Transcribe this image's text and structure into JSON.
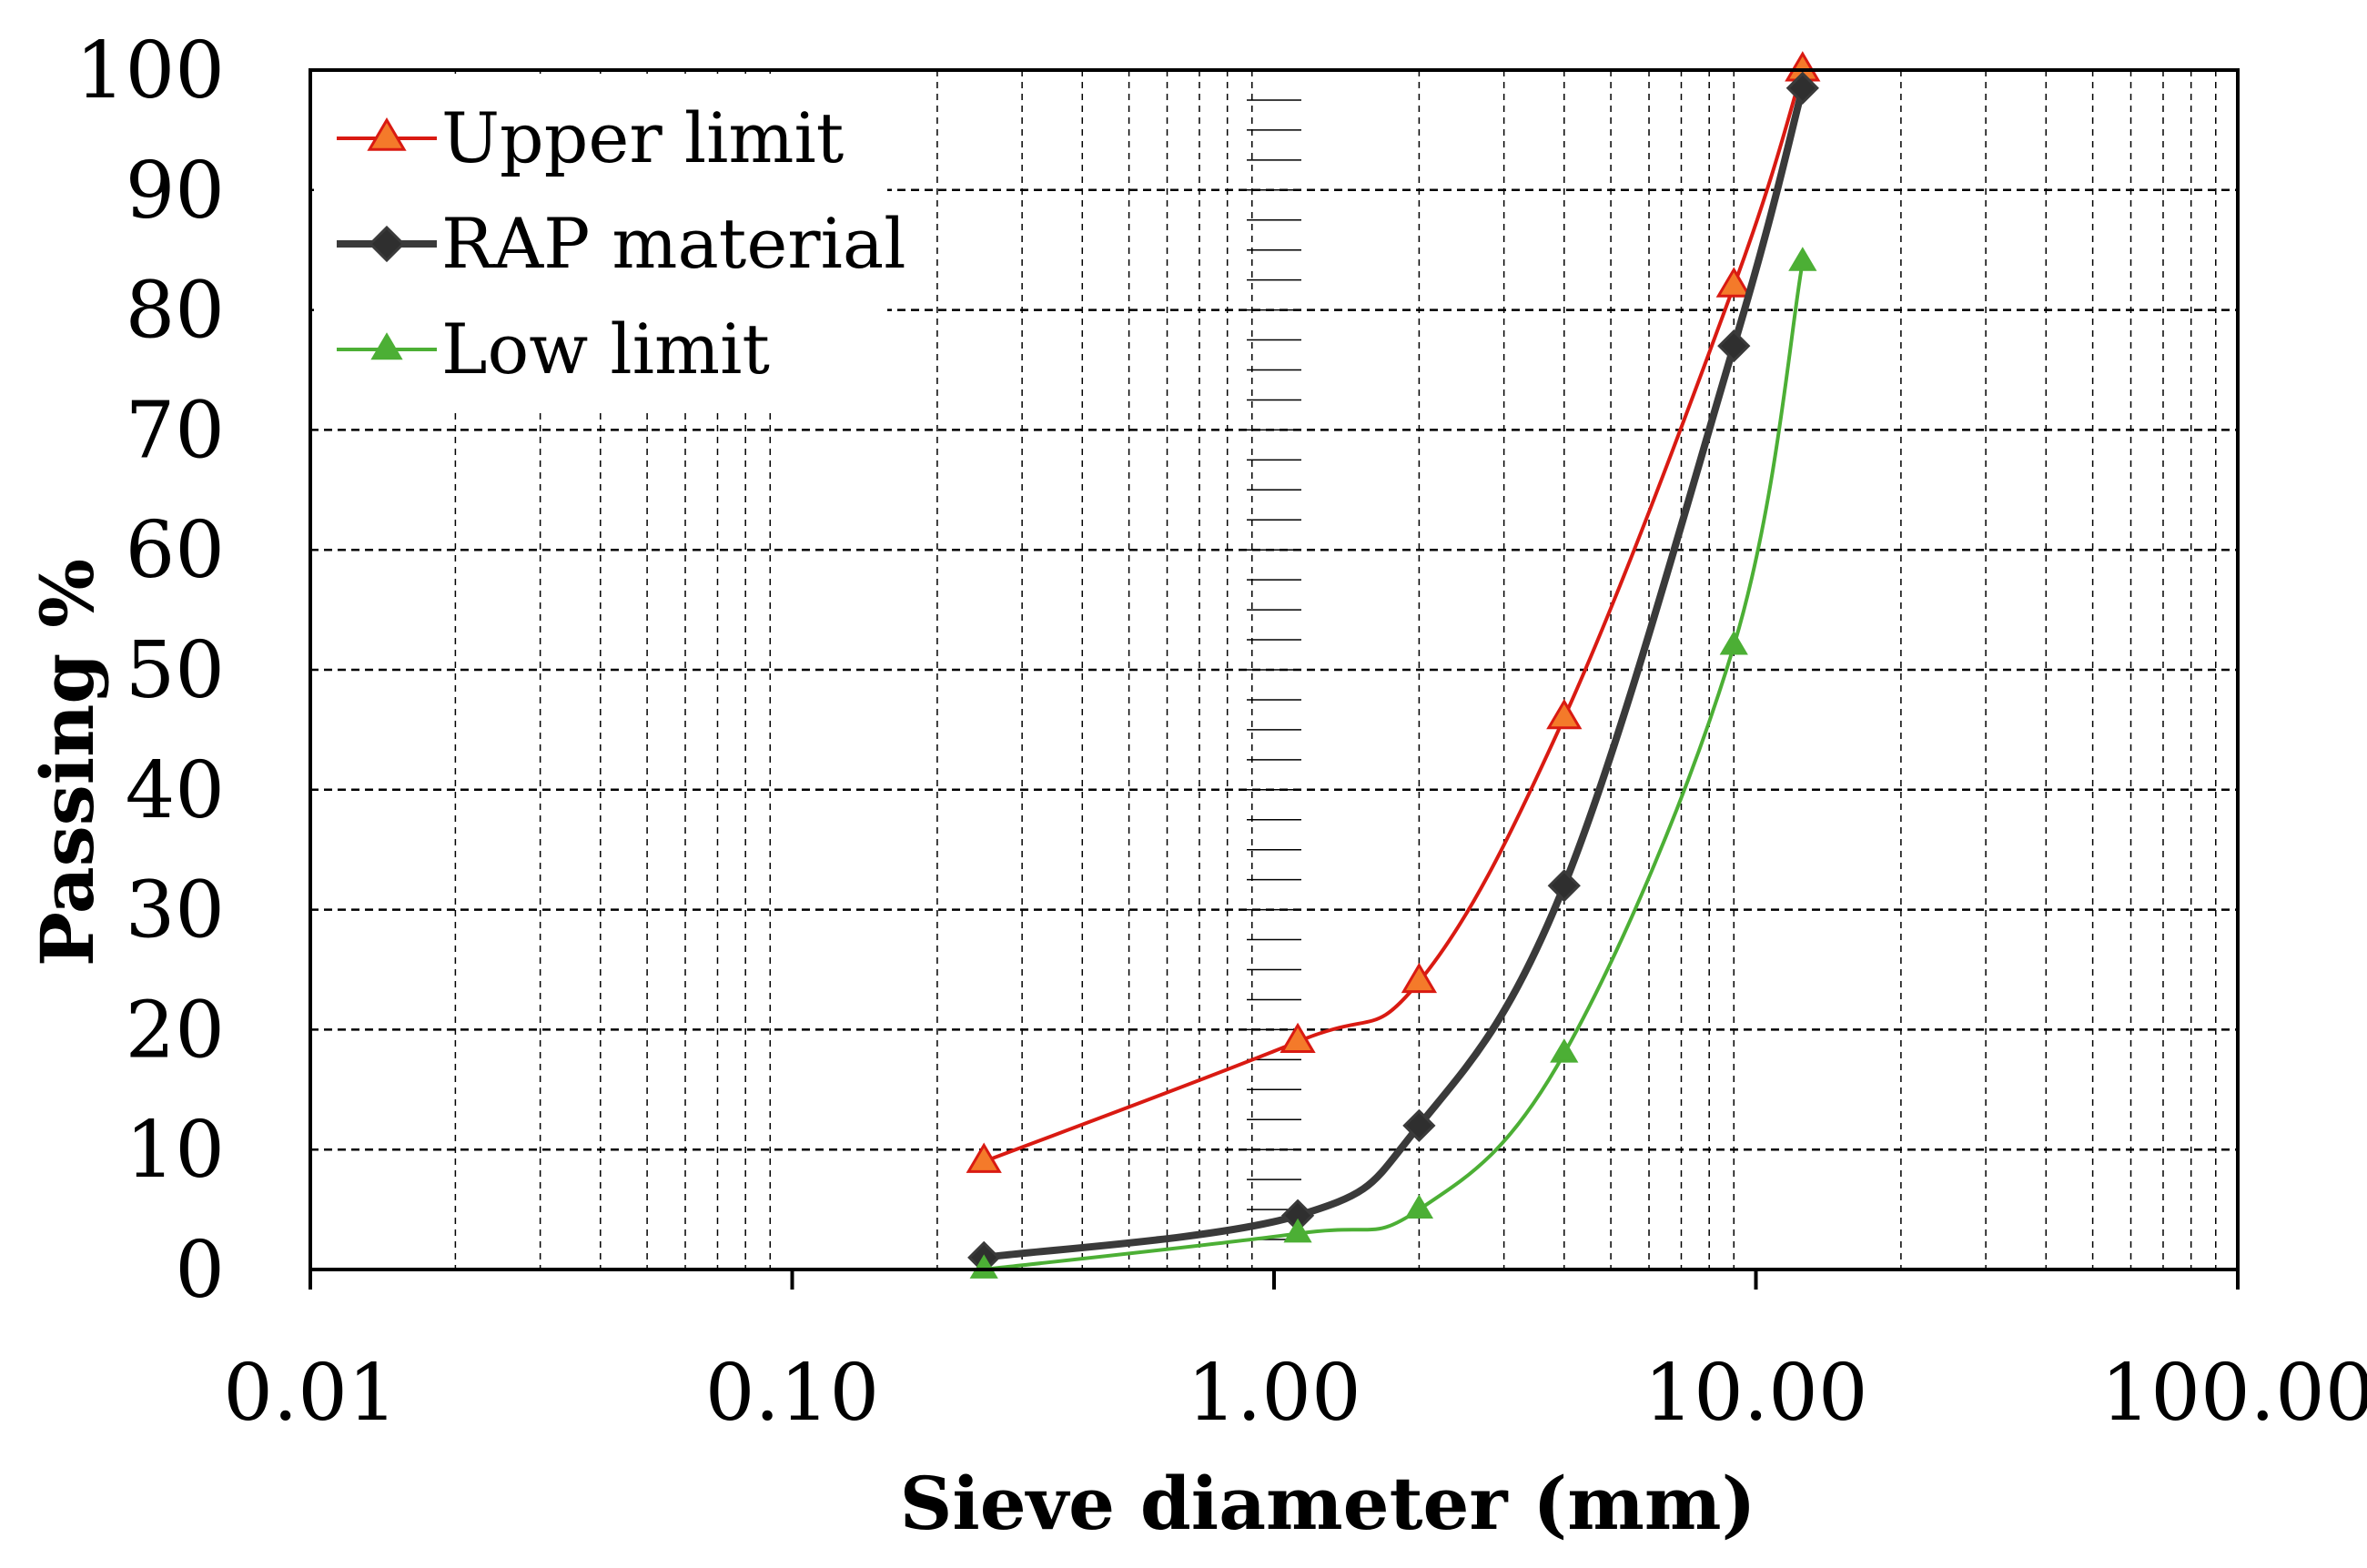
{
  "chart_data": {
    "type": "line",
    "title": "",
    "xlabel": "Sieve diameter (mm)",
    "ylabel": "Passing %",
    "xscale": "log",
    "xlim": [
      0.01,
      100
    ],
    "ylim": [
      0,
      100
    ],
    "grid": true,
    "legend_position": "top-left",
    "x_tick_labels": [
      "0.01",
      "0.10",
      "1.00",
      "10.00",
      "100.00"
    ],
    "y_tick_labels": [
      "0",
      "10",
      "20",
      "30",
      "40",
      "50",
      "60",
      "70",
      "80",
      "90",
      "100"
    ],
    "series": [
      {
        "name": "Upper limit",
        "color": "#d91a12",
        "marker": "triangle",
        "marker_fill": "#f47a2a",
        "x": [
          0.25,
          1.12,
          2.0,
          4.0,
          9.0,
          12.5
        ],
        "y": [
          9,
          19,
          24,
          46,
          82,
          100
        ]
      },
      {
        "name": "RAP material",
        "color": "#3a3a3a",
        "marker": "diamond",
        "marker_fill": "#2f2f2f",
        "x": [
          0.25,
          1.12,
          2.0,
          4.0,
          9.0,
          12.5
        ],
        "y": [
          1,
          4.5,
          12,
          32,
          77,
          98.5
        ]
      },
      {
        "name": "Low limit",
        "color": "#4caf35",
        "marker": "triangle",
        "marker_fill": "#4caf35",
        "x": [
          0.25,
          1.12,
          2.0,
          4.0,
          9.0,
          12.5
        ],
        "y": [
          0,
          3,
          5,
          18,
          52,
          84
        ]
      }
    ]
  }
}
